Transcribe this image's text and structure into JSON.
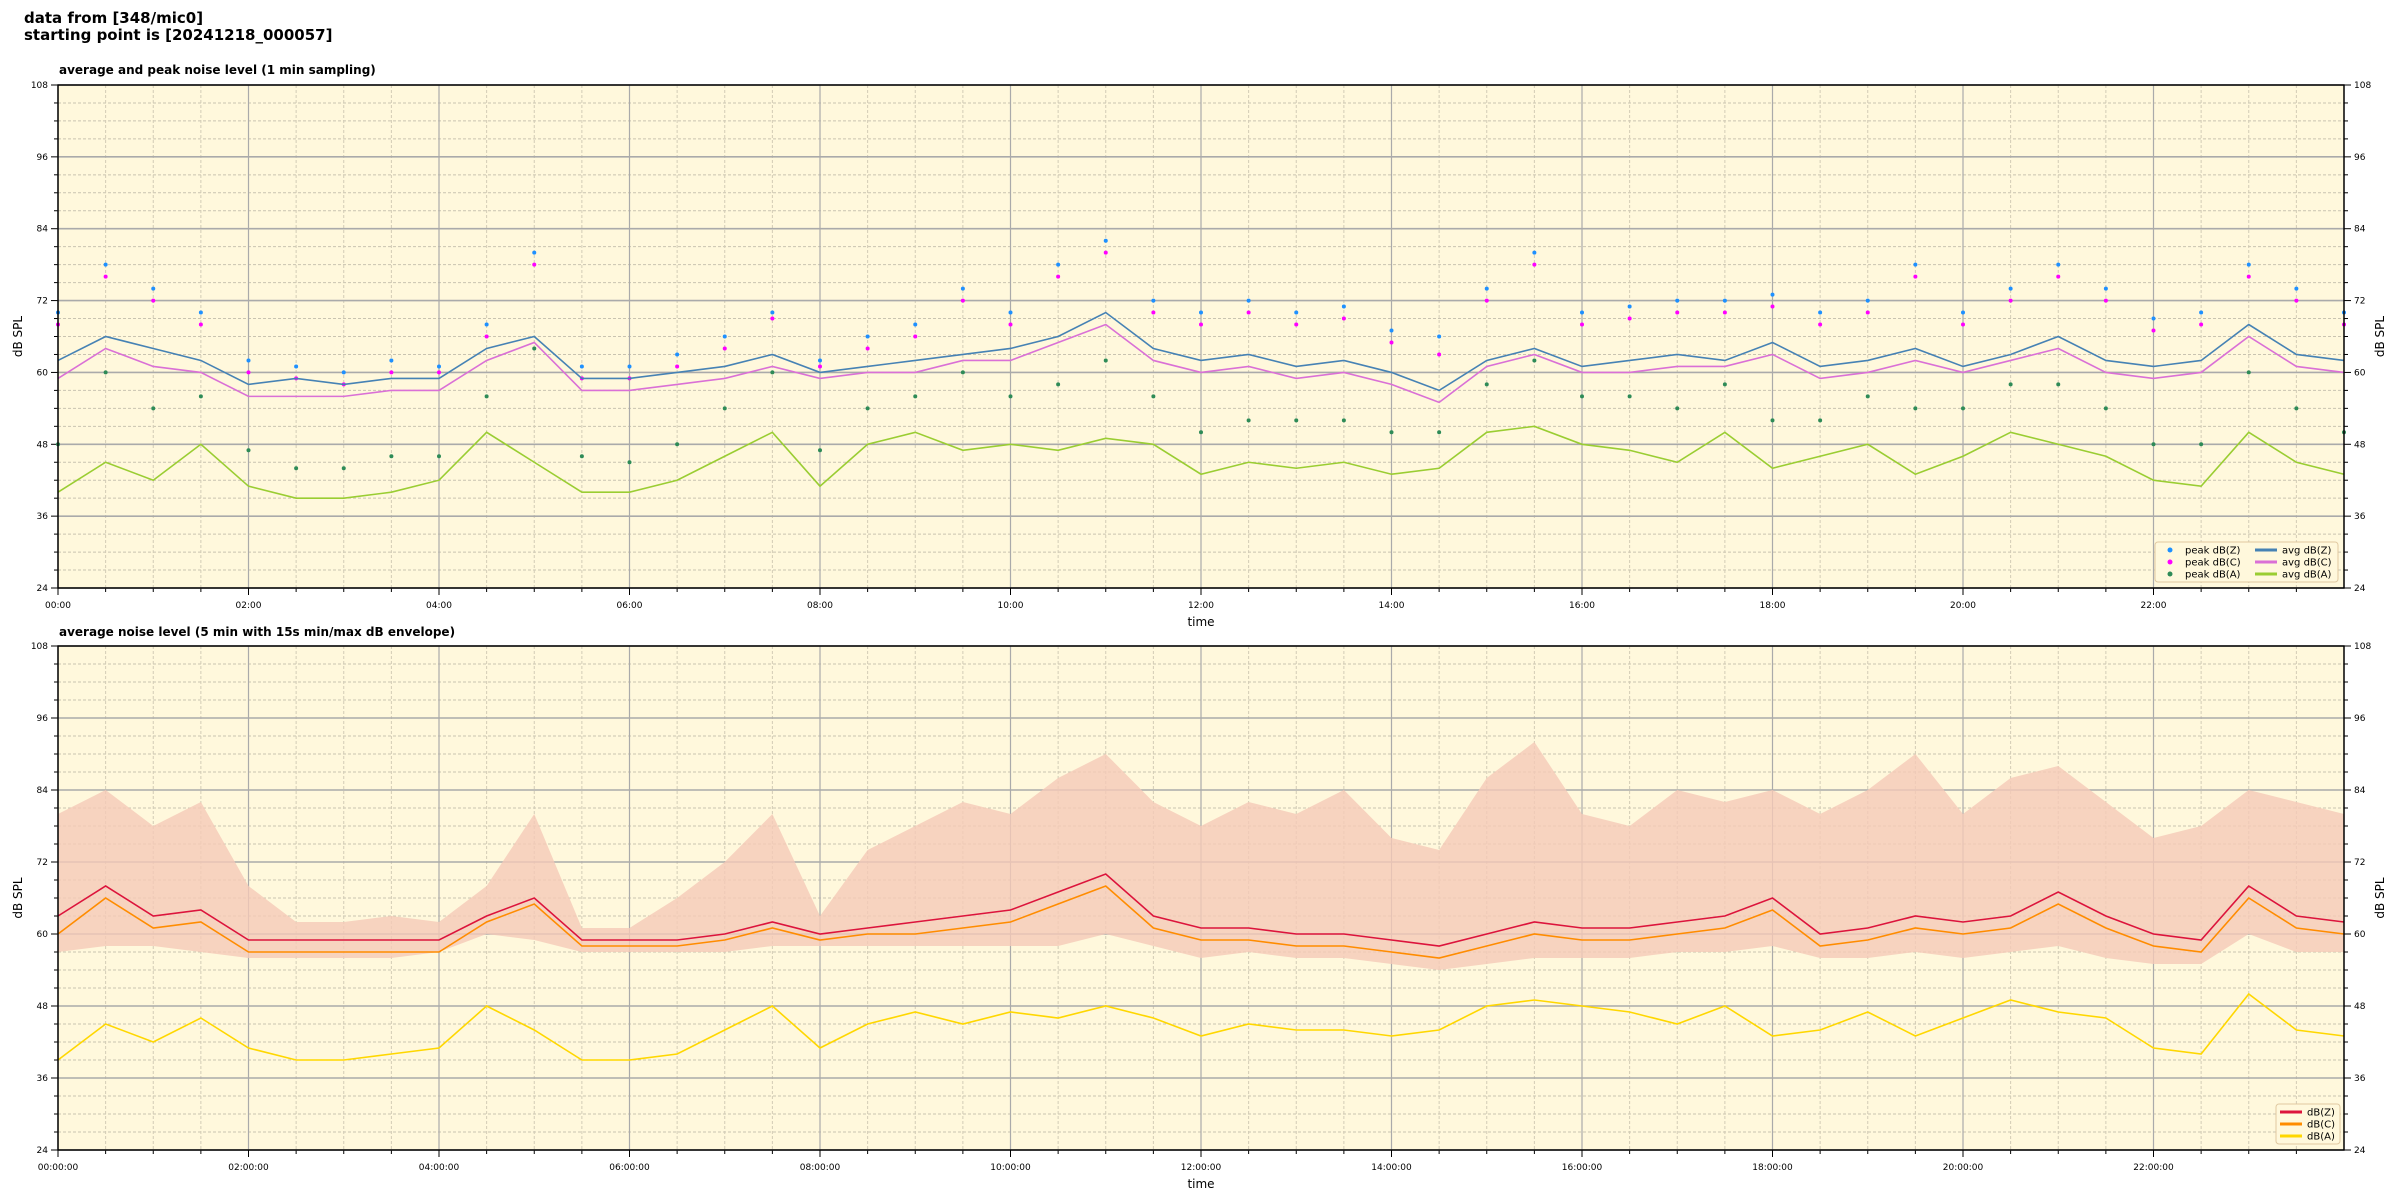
{
  "header": {
    "line1": "data from [348/mic0]",
    "line2": "starting point is [20241218_000057]"
  },
  "chart_data": [
    {
      "type": "line",
      "title": "average and peak noise level (1 min sampling)",
      "xlabel": "time",
      "ylabel": "dB SPL",
      "xlim_hours": [
        0,
        24
      ],
      "ylim": [
        24,
        108
      ],
      "yticks": [
        24,
        36,
        48,
        60,
        72,
        84,
        96,
        108
      ],
      "xtick_labels": [
        "00:00",
        "02:00",
        "04:00",
        "06:00",
        "08:00",
        "10:00",
        "12:00",
        "14:00",
        "16:00",
        "18:00",
        "20:00",
        "22:00"
      ],
      "grid": true,
      "background": "#fff8dc",
      "legend_position": "lower-right",
      "x_hours": [
        0,
        0.5,
        1,
        1.5,
        2,
        2.5,
        3,
        3.5,
        4,
        4.5,
        5,
        5.5,
        6,
        6.5,
        7,
        7.5,
        8,
        8.5,
        9,
        9.5,
        10,
        10.5,
        11,
        11.5,
        12,
        12.5,
        13,
        13.5,
        14,
        14.5,
        15,
        15.5,
        16,
        16.5,
        17,
        17.5,
        18,
        18.5,
        19,
        19.5,
        20,
        20.5,
        21,
        21.5,
        22,
        22.5,
        23,
        23.5,
        24
      ],
      "series": [
        {
          "name": "peak dB(Z)",
          "kind": "scatter",
          "color": "#1e90ff",
          "values": [
            70,
            78,
            74,
            70,
            62,
            61,
            60,
            62,
            61,
            68,
            80,
            61,
            61,
            63,
            66,
            70,
            62,
            66,
            68,
            74,
            70,
            78,
            82,
            72,
            70,
            72,
            70,
            71,
            67,
            66,
            74,
            80,
            70,
            71,
            72,
            72,
            73,
            70,
            72,
            78,
            70,
            74,
            78,
            74,
            69,
            70,
            78,
            74,
            70
          ]
        },
        {
          "name": "peak dB(C)",
          "kind": "scatter",
          "color": "#ff00ff",
          "values": [
            68,
            76,
            72,
            68,
            60,
            59,
            58,
            60,
            60,
            66,
            78,
            59,
            59,
            61,
            64,
            69,
            61,
            64,
            66,
            72,
            68,
            76,
            80,
            70,
            68,
            70,
            68,
            69,
            65,
            63,
            72,
            78,
            68,
            69,
            70,
            70,
            71,
            68,
            70,
            76,
            68,
            72,
            76,
            72,
            67,
            68,
            76,
            72,
            68
          ]
        },
        {
          "name": "peak dB(A)",
          "kind": "scatter",
          "color": "#2e8b57",
          "values": [
            48,
            60,
            54,
            56,
            47,
            44,
            44,
            46,
            46,
            56,
            64,
            46,
            45,
            48,
            54,
            60,
            47,
            54,
            56,
            60,
            56,
            58,
            62,
            56,
            50,
            52,
            52,
            52,
            50,
            50,
            58,
            62,
            56,
            56,
            54,
            58,
            52,
            52,
            56,
            54,
            54,
            58,
            58,
            54,
            48,
            48,
            60,
            54,
            50
          ]
        },
        {
          "name": "avg dB(Z)",
          "kind": "line",
          "color": "#4682b4",
          "values": [
            62,
            66,
            64,
            62,
            58,
            59,
            58,
            59,
            59,
            64,
            66,
            59,
            59,
            60,
            61,
            63,
            60,
            61,
            62,
            63,
            64,
            66,
            70,
            64,
            62,
            63,
            61,
            62,
            60,
            57,
            62,
            64,
            61,
            62,
            63,
            62,
            65,
            61,
            62,
            64,
            61,
            63,
            66,
            62,
            61,
            62,
            68,
            63,
            62
          ]
        },
        {
          "name": "avg dB(C)",
          "kind": "line",
          "color": "#da70d6",
          "values": [
            59,
            64,
            61,
            60,
            56,
            56,
            56,
            57,
            57,
            62,
            65,
            57,
            57,
            58,
            59,
            61,
            59,
            60,
            60,
            62,
            62,
            65,
            68,
            62,
            60,
            61,
            59,
            60,
            58,
            55,
            61,
            63,
            60,
            60,
            61,
            61,
            63,
            59,
            60,
            62,
            60,
            62,
            64,
            60,
            59,
            60,
            66,
            61,
            60
          ]
        },
        {
          "name": "avg dB(A)",
          "kind": "line",
          "color": "#9acd32",
          "values": [
            40,
            45,
            42,
            48,
            41,
            39,
            39,
            40,
            42,
            50,
            45,
            40,
            40,
            42,
            46,
            50,
            41,
            48,
            50,
            47,
            48,
            47,
            49,
            48,
            43,
            45,
            44,
            45,
            43,
            44,
            50,
            51,
            48,
            47,
            45,
            50,
            44,
            46,
            48,
            43,
            46,
            50,
            48,
            46,
            42,
            41,
            50,
            45,
            43
          ]
        }
      ]
    },
    {
      "type": "line",
      "title": "average noise level (5 min with 15s min/max dB envelope)",
      "xlabel": "time",
      "ylabel": "dB SPL",
      "xlim_hours": [
        0,
        24
      ],
      "ylim": [
        24,
        108
      ],
      "yticks": [
        24,
        36,
        48,
        60,
        72,
        84,
        96,
        108
      ],
      "xtick_labels": [
        "00:00:00",
        "02:00:00",
        "04:00:00",
        "06:00:00",
        "08:00:00",
        "10:00:00",
        "12:00:00",
        "14:00:00",
        "16:00:00",
        "18:00:00",
        "20:00:00",
        "22:00:00"
      ],
      "grid": true,
      "background": "#fff8dc",
      "legend_position": "lower-right",
      "x_hours": [
        0,
        0.5,
        1,
        1.5,
        2,
        2.5,
        3,
        3.5,
        4,
        4.5,
        5,
        5.5,
        6,
        6.5,
        7,
        7.5,
        8,
        8.5,
        9,
        9.5,
        10,
        10.5,
        11,
        11.5,
        12,
        12.5,
        13,
        13.5,
        14,
        14.5,
        15,
        15.5,
        16,
        16.5,
        17,
        17.5,
        18,
        18.5,
        19,
        19.5,
        20,
        20.5,
        21,
        21.5,
        22,
        22.5,
        23,
        23.5,
        24
      ],
      "envelope": {
        "color": "#f5c9b8",
        "min": [
          57,
          58,
          58,
          57,
          56,
          56,
          56,
          56,
          57,
          60,
          59,
          57,
          57,
          57,
          57,
          58,
          58,
          58,
          58,
          58,
          58,
          58,
          60,
          58,
          56,
          57,
          56,
          56,
          55,
          54,
          55,
          56,
          56,
          56,
          57,
          57,
          58,
          56,
          56,
          57,
          56,
          57,
          58,
          56,
          55,
          55,
          60,
          57,
          57
        ],
        "max": [
          80,
          84,
          78,
          82,
          68,
          62,
          62,
          63,
          62,
          68,
          80,
          61,
          61,
          66,
          72,
          80,
          63,
          74,
          78,
          82,
          80,
          86,
          90,
          82,
          78,
          82,
          80,
          84,
          76,
          74,
          86,
          92,
          80,
          78,
          84,
          82,
          84,
          80,
          84,
          90,
          80,
          86,
          88,
          82,
          76,
          78,
          84,
          82,
          80
        ]
      },
      "series": [
        {
          "name": "dB(Z)",
          "kind": "line",
          "color": "#dc143c",
          "values": [
            63,
            68,
            63,
            64,
            59,
            59,
            59,
            59,
            59,
            63,
            66,
            59,
            59,
            59,
            60,
            62,
            60,
            61,
            62,
            63,
            64,
            67,
            70,
            63,
            61,
            61,
            60,
            60,
            59,
            58,
            60,
            62,
            61,
            61,
            62,
            63,
            66,
            60,
            61,
            63,
            62,
            63,
            67,
            63,
            60,
            59,
            68,
            63,
            62
          ]
        },
        {
          "name": "dB(C)",
          "kind": "line",
          "color": "#ff8c00",
          "values": [
            60,
            66,
            61,
            62,
            57,
            57,
            57,
            57,
            57,
            62,
            65,
            58,
            58,
            58,
            59,
            61,
            59,
            60,
            60,
            61,
            62,
            65,
            68,
            61,
            59,
            59,
            58,
            58,
            57,
            56,
            58,
            60,
            59,
            59,
            60,
            61,
            64,
            58,
            59,
            61,
            60,
            61,
            65,
            61,
            58,
            57,
            66,
            61,
            60
          ]
        },
        {
          "name": "dB(A)",
          "kind": "line",
          "color": "#ffd700",
          "values": [
            39,
            45,
            42,
            46,
            41,
            39,
            39,
            40,
            41,
            48,
            44,
            39,
            39,
            40,
            44,
            48,
            41,
            45,
            47,
            45,
            47,
            46,
            48,
            46,
            43,
            45,
            44,
            44,
            43,
            44,
            48,
            49,
            48,
            47,
            45,
            48,
            43,
            44,
            47,
            43,
            46,
            49,
            47,
            46,
            41,
            40,
            50,
            44,
            43
          ]
        }
      ]
    }
  ]
}
